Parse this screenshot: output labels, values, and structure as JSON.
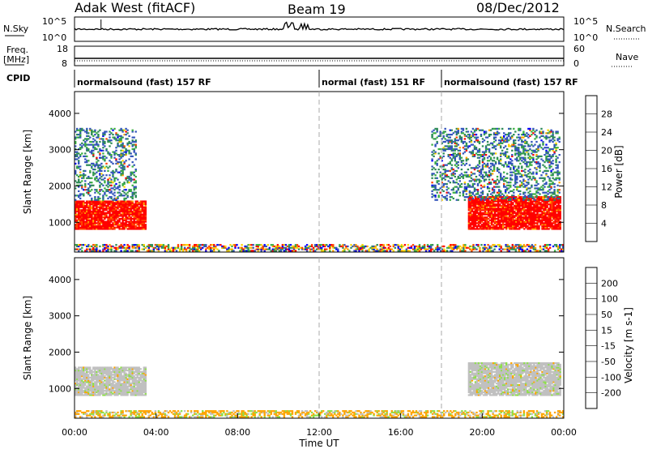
{
  "header": {
    "site": "Adak West (fitACF)",
    "beam": "Beam 19",
    "date": "08/Dec/2012"
  },
  "noise_panel": {
    "left_label": "N.Sky",
    "right_label": "N.Search",
    "left_ticks": [
      "10^5",
      "10^0"
    ],
    "right_ticks": [
      "10^5",
      "10^0"
    ]
  },
  "freq_panel": {
    "left_label_1": "Freq.",
    "left_label_2": "[MHz]",
    "right_label": "Nave",
    "left_ticks": [
      "18",
      "8"
    ],
    "right_ticks": [
      "60",
      "0"
    ]
  },
  "cpid_panel": {
    "label": "CPID",
    "segments": [
      {
        "text": "normalsound (fast) 157 RF",
        "start_hour": 0
      },
      {
        "text": "normal (fast) 151 RF",
        "start_hour": 12
      },
      {
        "text": "normalsound (fast) 157 RF",
        "start_hour": 18
      }
    ]
  },
  "x_axis": {
    "label": "Time UT",
    "ticks": [
      "00:00",
      "04:00",
      "08:00",
      "12:00",
      "16:00",
      "20:00",
      "00:00"
    ]
  },
  "chart_data": [
    {
      "type": "heatmap",
      "title": "Power",
      "ylabel": "Slant Range [km]",
      "xlim_hours": [
        0,
        24
      ],
      "ylim_km": [
        180,
        4600
      ],
      "y_ticks": [
        "1000",
        "2000",
        "3000",
        "4000"
      ],
      "colorbar": {
        "label": "Power [dB]",
        "ticks": [
          "4",
          "8",
          "12",
          "16",
          "20",
          "24",
          "28"
        ],
        "colors": [
          "#0000ff",
          "#3355bb",
          "#2e8b57",
          "#3cb043",
          "#ffd700",
          "#ffa500",
          "#ff4500",
          "#ff0000"
        ]
      },
      "regions": [
        {
          "t0": 0.0,
          "t1": 3.5,
          "r0": 800,
          "r1": 1600,
          "level": "high"
        },
        {
          "t0": 0.0,
          "t1": 3.0,
          "r0": 1600,
          "r1": 3600,
          "level": "patchy"
        },
        {
          "t0": 19.3,
          "t1": 23.8,
          "r0": 800,
          "r1": 1700,
          "level": "high"
        },
        {
          "t0": 17.5,
          "t1": 23.8,
          "r0": 1600,
          "r1": 3600,
          "level": "patchy"
        },
        {
          "t0": 0.0,
          "t1": 24.0,
          "r0": 200,
          "r1": 400,
          "level": "ground"
        }
      ]
    },
    {
      "type": "heatmap",
      "title": "Velocity",
      "ylabel": "Slant Range [km]",
      "xlim_hours": [
        0,
        24
      ],
      "ylim_km": [
        180,
        4600
      ],
      "y_ticks": [
        "1000",
        "2000",
        "3000",
        "4000"
      ],
      "colorbar": {
        "label": "Velocity [m s-1]",
        "ticks": [
          "200",
          "100",
          "50",
          "15",
          "-15",
          "-50",
          "-100",
          "-200"
        ],
        "colors": [
          "#1a3a8a",
          "#2e8b57",
          "#3cb043",
          "#8ee04a",
          "#c0c0c0",
          "#ffa500",
          "#ff7a00",
          "#ff3300",
          "#ff0000"
        ]
      },
      "regions": [
        {
          "t0": 0.0,
          "t1": 3.5,
          "r0": 800,
          "r1": 1600,
          "level": "ground-scatter"
        },
        {
          "t0": 19.3,
          "t1": 23.8,
          "r0": 800,
          "r1": 1700,
          "level": "ground-scatter"
        },
        {
          "t0": 0.0,
          "t1": 24.0,
          "r0": 200,
          "r1": 400,
          "level": "near-range"
        }
      ]
    }
  ]
}
